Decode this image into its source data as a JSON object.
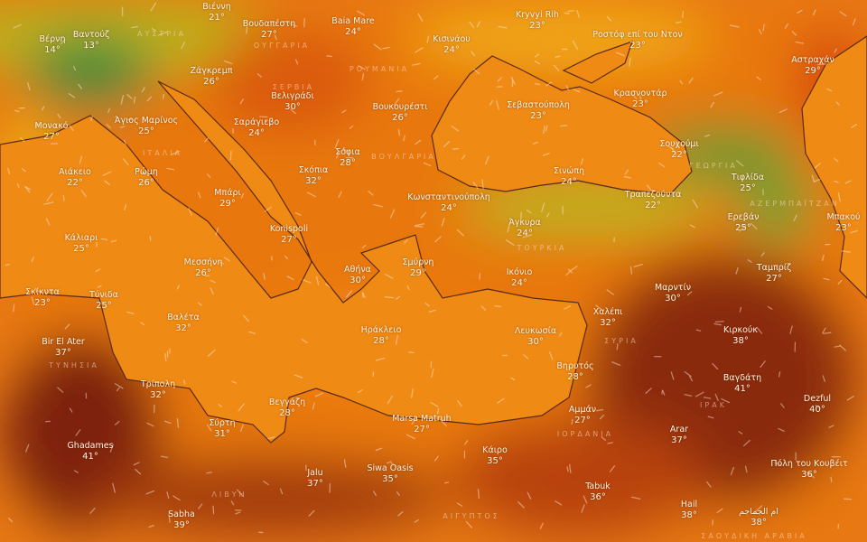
{
  "map": {
    "layer": "temperature",
    "colors": {
      "cool": "#2f8a3c",
      "mild": "#e9c21a",
      "warm": "#ee8a12",
      "hot": "#d8500c",
      "very_hot": "#7e2208",
      "coast": "#5a2a10"
    },
    "cities": [
      {
        "name": "Βιέννη",
        "temp": "21°"
      },
      {
        "name": "Βέρνη",
        "temp": "14°"
      },
      {
        "name": "Βαντούζ",
        "temp": "13°"
      },
      {
        "name": "Βουδαπέστη",
        "temp": "27°"
      },
      {
        "name": "Baia Mare",
        "temp": "24°"
      },
      {
        "name": "Ζάγκρεμπ",
        "temp": "26°"
      },
      {
        "name": "Βελιγράδι",
        "temp": "30°"
      },
      {
        "name": "Βουκουρέστι",
        "temp": "26°"
      },
      {
        "name": "Σαράγιεβο",
        "temp": "24°"
      },
      {
        "name": "Μονακό",
        "temp": "27°"
      },
      {
        "name": "Άγιος Μαρίνος",
        "temp": "25°"
      },
      {
        "name": "Σόφια",
        "temp": "28°"
      },
      {
        "name": "Σκόπια",
        "temp": "32°"
      },
      {
        "name": "Ρώμη",
        "temp": "26°"
      },
      {
        "name": "Αιάκειο",
        "temp": "22°"
      },
      {
        "name": "Μπάρι",
        "temp": "29°"
      },
      {
        "name": "Κάλιαρι",
        "temp": "25°"
      },
      {
        "name": "Konispoli",
        "temp": "27°"
      },
      {
        "name": "Μεσσήνη",
        "temp": "26°"
      },
      {
        "name": "Αθήνα",
        "temp": "30°"
      },
      {
        "name": "Σμύρνη",
        "temp": "29°"
      },
      {
        "name": "Σκίκντα",
        "temp": "23°"
      },
      {
        "name": "Τύνιδα",
        "temp": "25°"
      },
      {
        "name": "Βαλέτα",
        "temp": "32°"
      },
      {
        "name": "Ηράκλειο",
        "temp": "28°"
      },
      {
        "name": "Bir El Ater",
        "temp": "37°"
      },
      {
        "name": "Λευκωσία",
        "temp": "30°"
      },
      {
        "name": "Τρίπολη",
        "temp": "32°"
      },
      {
        "name": "Βεγγάζη",
        "temp": "28°"
      },
      {
        "name": "Σύρτη",
        "temp": "31°"
      },
      {
        "name": "Marsa Matruh",
        "temp": "27°"
      },
      {
        "name": "Ghadames",
        "temp": "41°"
      },
      {
        "name": "Jalu",
        "temp": "37°"
      },
      {
        "name": "Siwa Oasis",
        "temp": "35°"
      },
      {
        "name": "Sabha",
        "temp": "39°"
      },
      {
        "name": "Κάιρο",
        "temp": "35°"
      },
      {
        "name": "Βηρυτός",
        "temp": "28°"
      },
      {
        "name": "Αμμάν",
        "temp": "27°"
      },
      {
        "name": "Tabuk",
        "temp": "36°"
      },
      {
        "name": "Arar",
        "temp": "37°"
      },
      {
        "name": "Hail",
        "temp": "38°"
      },
      {
        "name": "ام الجماجم",
        "temp": "38°"
      },
      {
        "name": "Βαγδάτη",
        "temp": "41°"
      },
      {
        "name": "Dezful",
        "temp": "40°"
      },
      {
        "name": "Πόλη του Κουβέιτ",
        "temp": "36°"
      },
      {
        "name": "Κιρκούκ",
        "temp": "38°"
      },
      {
        "name": "Χαλέπι",
        "temp": "32°"
      },
      {
        "name": "Μαρντίν",
        "temp": "30°"
      },
      {
        "name": "Ταμπρίζ",
        "temp": "27°"
      },
      {
        "name": "Ικόνιο",
        "temp": "24°"
      },
      {
        "name": "Άγκυρα",
        "temp": "24°"
      },
      {
        "name": "Κωνσταντινούπολη",
        "temp": "24°"
      },
      {
        "name": "Σινώπη",
        "temp": "24°"
      },
      {
        "name": "Τραπεζούντα",
        "temp": "22°"
      },
      {
        "name": "Τιφλίδα",
        "temp": "25°"
      },
      {
        "name": "Ερεβάν",
        "temp": "25°"
      },
      {
        "name": "Μπακού",
        "temp": "23°"
      },
      {
        "name": "Σουχούμι",
        "temp": "22°"
      },
      {
        "name": "Κρασνοντάρ",
        "temp": "23°"
      },
      {
        "name": "Σεβαστούπολη",
        "temp": "23°"
      },
      {
        "name": "Ροστόφ επί του Ντον",
        "temp": "23°"
      },
      {
        "name": "Kryvyi Rih",
        "temp": "23°"
      },
      {
        "name": "Κισινάου",
        "temp": "24°"
      },
      {
        "name": "Αστραχάν",
        "temp": "29°"
      }
    ],
    "countries": [
      "ΑΥΣΤΡΙΑ",
      "ΟΥΓΓΑΡΙΑ",
      "ΡΟΥΜΑΝΙΑ",
      "ΣΕΡΒΙΑ",
      "ΒΟΥΛΓΑΡΙΑ",
      "ΙΤΑΛΙΑ",
      "ΤΟΥΡΚΙΑ",
      "ΣΥΡΙΑ",
      "ΤΥΝΗΣΙΑ",
      "ΛΙΒΥΗ",
      "ΑΙΓΥΠΤΟΣ",
      "ΙΟΡΔΑΝΙΑ",
      "ΙΡΑΚ",
      "ΣΑΟΥΔΙΚΗ ΑΡΑΒΙΑ",
      "ΓΕΩΡΓΙΑ",
      "ΑΖΕΡΜΠΑΪΤΖΑΝ"
    ]
  }
}
